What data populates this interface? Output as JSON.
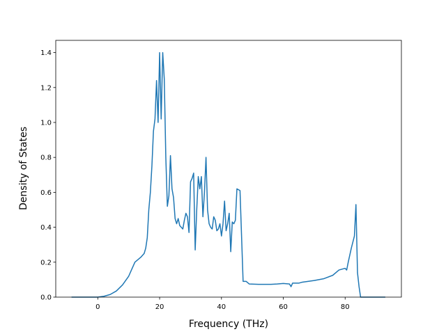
{
  "chart_data": {
    "type": "line",
    "xlabel": "Frequency (THz)",
    "ylabel": "Density of States",
    "xlim": [
      -13.6,
      98.2
    ],
    "ylim": [
      0,
      1.47
    ],
    "xticks": [
      0,
      20,
      40,
      60,
      80
    ],
    "yticks": [
      {
        "value": 0,
        "label": "0.0"
      },
      0.2,
      0.4,
      0.6,
      0.8,
      {
        "value": 1,
        "label": "1.0"
      },
      1.2,
      1.4
    ],
    "grid": false,
    "series": [
      {
        "color": "#1f77b4",
        "x": [
          -8.5,
          0,
          2,
          4,
          6,
          8,
          10,
          11,
          12,
          13,
          14,
          15,
          15.5,
          16,
          16.5,
          17,
          17.5,
          18,
          18.5,
          19,
          19.5,
          20,
          20.5,
          21,
          21.5,
          22,
          22.5,
          23,
          23.5,
          24,
          24.5,
          25,
          25.5,
          26,
          26.5,
          27,
          27.5,
          28,
          28.5,
          29,
          29.5,
          30,
          30.5,
          31,
          31.5,
          32,
          32.5,
          33,
          33.5,
          34,
          34.5,
          35,
          35.5,
          36,
          36.5,
          37,
          37.5,
          38,
          38.5,
          39,
          39.5,
          40,
          40.5,
          41,
          41.5,
          42,
          42.5,
          43,
          43.5,
          44,
          44.5,
          45,
          46,
          46.5,
          47,
          48,
          49,
          52,
          56,
          58,
          60,
          62,
          62.5,
          63,
          65,
          66,
          70,
          73,
          76,
          78,
          80,
          80.5,
          81,
          82,
          83,
          83.5,
          84,
          84.5,
          85,
          93
        ],
        "values": [
          0,
          0,
          0.005,
          0.015,
          0.035,
          0.07,
          0.12,
          0.16,
          0.2,
          0.215,
          0.23,
          0.25,
          0.28,
          0.34,
          0.5,
          0.6,
          0.75,
          0.95,
          1.02,
          1.24,
          1.0,
          1.4,
          1.02,
          1.4,
          1.25,
          0.8,
          0.52,
          0.58,
          0.81,
          0.62,
          0.57,
          0.45,
          0.42,
          0.45,
          0.41,
          0.4,
          0.39,
          0.44,
          0.48,
          0.46,
          0.37,
          0.66,
          0.68,
          0.71,
          0.27,
          0.5,
          0.69,
          0.62,
          0.69,
          0.46,
          0.6,
          0.8,
          0.5,
          0.42,
          0.4,
          0.39,
          0.46,
          0.44,
          0.38,
          0.39,
          0.42,
          0.35,
          0.42,
          0.55,
          0.38,
          0.42,
          0.48,
          0.26,
          0.43,
          0.42,
          0.44,
          0.62,
          0.61,
          0.35,
          0.09,
          0.09,
          0.075,
          0.073,
          0.073,
          0.075,
          0.078,
          0.075,
          0.06,
          0.08,
          0.08,
          0.085,
          0.095,
          0.105,
          0.125,
          0.155,
          0.165,
          0.155,
          0.2,
          0.28,
          0.35,
          0.53,
          0.14,
          0.06,
          0,
          0
        ]
      }
    ]
  }
}
